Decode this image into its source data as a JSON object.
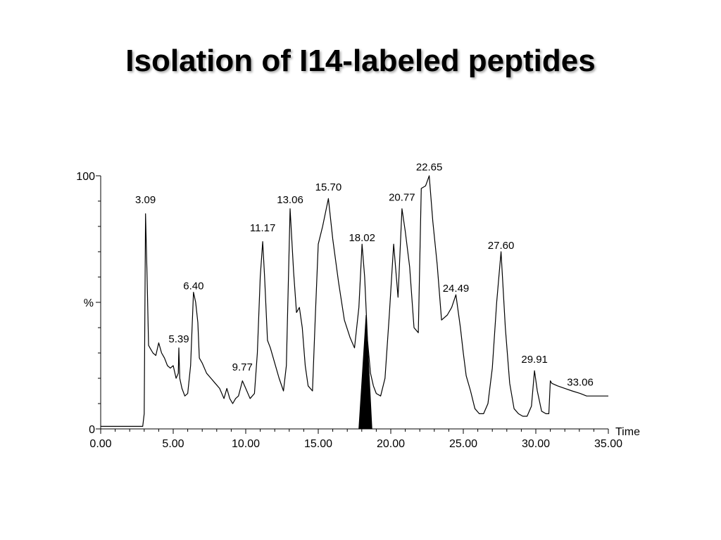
{
  "slide": {
    "title": "Isolation of I14-labeled peptides"
  },
  "chart_data": {
    "type": "line",
    "xlabel": "Time",
    "ylabel": "%",
    "xlim": [
      0,
      35
    ],
    "ylim": [
      0,
      100
    ],
    "x_ticks": [
      "0.00",
      "5.00",
      "10.00",
      "15.00",
      "20.00",
      "25.00",
      "30.00",
      "35.00"
    ],
    "y_ticks": [
      "0",
      "100"
    ],
    "grid": false,
    "line_color": "#000000",
    "highlight": {
      "label": "shaded peak",
      "x_start": 17.8,
      "x_peak": 18.3,
      "x_end": 18.7,
      "y_peak": 45,
      "color": "#000000"
    },
    "peak_labels": [
      {
        "text": "3.09",
        "x": 3.09,
        "y": 88
      },
      {
        "text": "5.39",
        "x": 5.39,
        "y": 33
      },
      {
        "text": "6.40",
        "x": 6.4,
        "y": 54
      },
      {
        "text": "9.77",
        "x": 9.77,
        "y": 22
      },
      {
        "text": "11.17",
        "x": 11.17,
        "y": 77
      },
      {
        "text": "13.06",
        "x": 13.06,
        "y": 88
      },
      {
        "text": "15.70",
        "x": 15.7,
        "y": 93
      },
      {
        "text": "18.02",
        "x": 18.02,
        "y": 73
      },
      {
        "text": "20.77",
        "x": 20.77,
        "y": 89
      },
      {
        "text": "22.65",
        "x": 22.65,
        "y": 101
      },
      {
        "text": "24.49",
        "x": 24.49,
        "y": 53
      },
      {
        "text": "27.60",
        "x": 27.6,
        "y": 70
      },
      {
        "text": "29.91",
        "x": 29.91,
        "y": 25
      },
      {
        "text": "33.06",
        "x": 33.06,
        "y": 16
      }
    ],
    "series": [
      {
        "x": [
          0.0,
          2.9,
          3.0,
          3.09,
          3.2,
          3.3,
          3.4,
          3.6,
          3.8,
          4.0,
          4.2,
          4.4,
          4.6,
          4.8,
          5.0,
          5.2,
          5.35,
          5.39,
          5.45,
          5.6,
          5.8,
          6.0,
          6.2,
          6.4,
          6.55,
          6.7,
          6.8,
          7.0,
          7.3,
          7.6,
          7.9,
          8.2,
          8.5,
          8.7,
          8.9,
          9.1,
          9.3,
          9.5,
          9.77,
          10.0,
          10.3,
          10.6,
          10.8,
          11.0,
          11.17,
          11.3,
          11.5,
          11.7,
          12.0,
          12.3,
          12.6,
          12.8,
          13.06,
          13.3,
          13.5,
          13.7,
          13.9,
          14.1,
          14.3,
          14.6,
          14.8,
          15.0,
          15.3,
          15.7,
          16.0,
          16.4,
          16.8,
          17.2,
          17.5,
          17.8,
          18.02,
          18.2,
          18.4,
          18.6,
          18.8,
          19.0,
          19.3,
          19.6,
          19.9,
          20.2,
          20.5,
          20.77,
          21.0,
          21.3,
          21.6,
          21.9,
          22.1,
          22.4,
          22.65,
          22.9,
          23.2,
          23.5,
          23.9,
          24.2,
          24.49,
          24.8,
          25.0,
          25.2,
          25.5,
          25.8,
          26.1,
          26.4,
          26.7,
          27.0,
          27.3,
          27.6,
          27.9,
          28.2,
          28.5,
          28.8,
          29.1,
          29.4,
          29.7,
          29.91,
          30.1,
          30.4,
          30.7,
          30.9,
          31.0,
          31.1,
          31.5,
          32.0,
          32.5,
          33.06,
          33.5,
          34.0,
          34.5,
          35.0
        ],
        "y": [
          1,
          1,
          6,
          85,
          60,
          33,
          32,
          30,
          29,
          34,
          30,
          28,
          25,
          24,
          25,
          20,
          22,
          32,
          20,
          16,
          13,
          14,
          25,
          54,
          50,
          42,
          28,
          26,
          22,
          20,
          18,
          16,
          12,
          16,
          12,
          10,
          12,
          13,
          19,
          16,
          12,
          14,
          30,
          60,
          74,
          60,
          35,
          32,
          26,
          20,
          15,
          25,
          87,
          62,
          46,
          48,
          40,
          25,
          17,
          15,
          45,
          73,
          80,
          91,
          75,
          58,
          43,
          36,
          32,
          48,
          73,
          60,
          35,
          22,
          17,
          14,
          13,
          20,
          45,
          73,
          52,
          87,
          78,
          64,
          40,
          38,
          95,
          96,
          100,
          82,
          65,
          43,
          45,
          48,
          53,
          40,
          30,
          21,
          15,
          8,
          6,
          6,
          10,
          24,
          50,
          70,
          40,
          18,
          8,
          6,
          5,
          5,
          9,
          23,
          15,
          7,
          6,
          6,
          19,
          18,
          17,
          16,
          15,
          14,
          13,
          13,
          13,
          13
        ]
      }
    ]
  }
}
